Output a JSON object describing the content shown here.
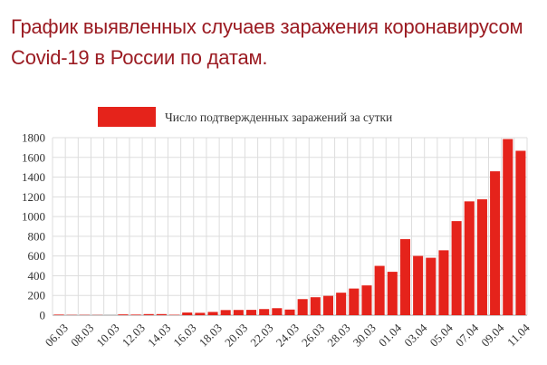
{
  "title_lines": [
    "График выявленных случаев заражения коронавирусом",
    "Covid-19 в России по датам."
  ],
  "colors": {
    "bar": "#e5231b",
    "title": "#9b1b22",
    "grid": "#dddddd",
    "axis": "#999999"
  },
  "chart_data": {
    "type": "bar",
    "title": "График выявленных случаев заражения коронавирусом Covid-19 в России по датам.",
    "legend": {
      "position": "top",
      "label": "Число подтвержденных заражений за сутки"
    },
    "grid": true,
    "ylim": [
      0,
      1800
    ],
    "yticks": [
      0,
      200,
      400,
      600,
      800,
      1000,
      1200,
      1400,
      1600,
      1800
    ],
    "categories": [
      "06.03",
      "07.03",
      "08.03",
      "09.03",
      "10.03",
      "11.03",
      "12.03",
      "13.03",
      "14.03",
      "15.03",
      "16.03",
      "17.03",
      "18.03",
      "19.03",
      "20.03",
      "21.03",
      "22.03",
      "23.03",
      "24.03",
      "25.03",
      "26.03",
      "27.03",
      "28.03",
      "29.03",
      "30.03",
      "31.03",
      "01.04",
      "02.04",
      "03.04",
      "04.04",
      "05.04",
      "06.04",
      "07.04",
      "08.04",
      "09.04",
      "10.04",
      "11.04"
    ],
    "xtick_labels": [
      "06.03",
      "08.03",
      "10.03",
      "12.03",
      "14.03",
      "16.03",
      "18.03",
      "20.03",
      "22.03",
      "24.03",
      "26.03",
      "28.03",
      "30.03",
      "01.04",
      "03.04",
      "05.04",
      "07.04",
      "09.04",
      "11.04"
    ],
    "series": [
      {
        "name": "Число подтвержденных заражений за сутки",
        "values": [
          6,
          3,
          3,
          2,
          0,
          8,
          6,
          11,
          11,
          4,
          27,
          24,
          33,
          52,
          53,
          54,
          62,
          71,
          57,
          163,
          182,
          196,
          228,
          270,
          302,
          500,
          440,
          771,
          601,
          582,
          658,
          954,
          1154,
          1175,
          1459,
          1786,
          1667
        ]
      }
    ]
  }
}
